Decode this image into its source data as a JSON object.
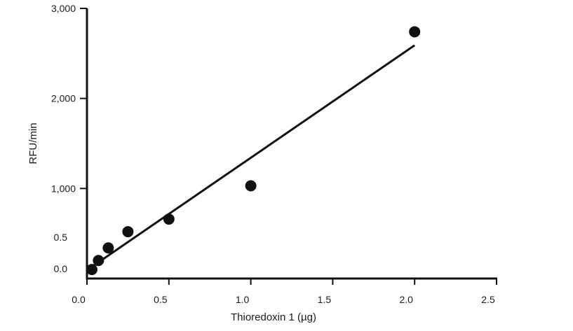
{
  "chart_data": {
    "type": "scatter",
    "title": "",
    "xlabel": "Thioredoxin 1 (µg)",
    "ylabel": "RFU/min",
    "xlim": [
      0,
      2.5
    ],
    "x_ticks": [
      0.0,
      0.5,
      1.0,
      1.5,
      2.0,
      2.5
    ],
    "x_tick_labels": [
      "0.0",
      "0.5",
      "1.0",
      "1.5",
      "2.0",
      "2.5"
    ],
    "ylim": [
      0,
      3000
    ],
    "y_ticks": [
      0,
      1000,
      2000,
      3000
    ],
    "y_tick_labels": [
      "1,000",
      "2,000",
      "3,000"
    ],
    "y_extra_labels": [
      "0.5",
      "0.0"
    ],
    "grid": false,
    "legend": "none",
    "point_color": "#111111",
    "line_color": "#111111",
    "series": [
      {
        "x": [
          0.03,
          0.07,
          0.13,
          0.25,
          0.5,
          1.0,
          2.0
        ],
        "y": [
          100,
          200,
          340,
          520,
          660,
          1030,
          2740
        ]
      }
    ],
    "fit_line": {
      "x": [
        0.03,
        2.0
      ],
      "y": [
        130,
        2590
      ]
    }
  }
}
